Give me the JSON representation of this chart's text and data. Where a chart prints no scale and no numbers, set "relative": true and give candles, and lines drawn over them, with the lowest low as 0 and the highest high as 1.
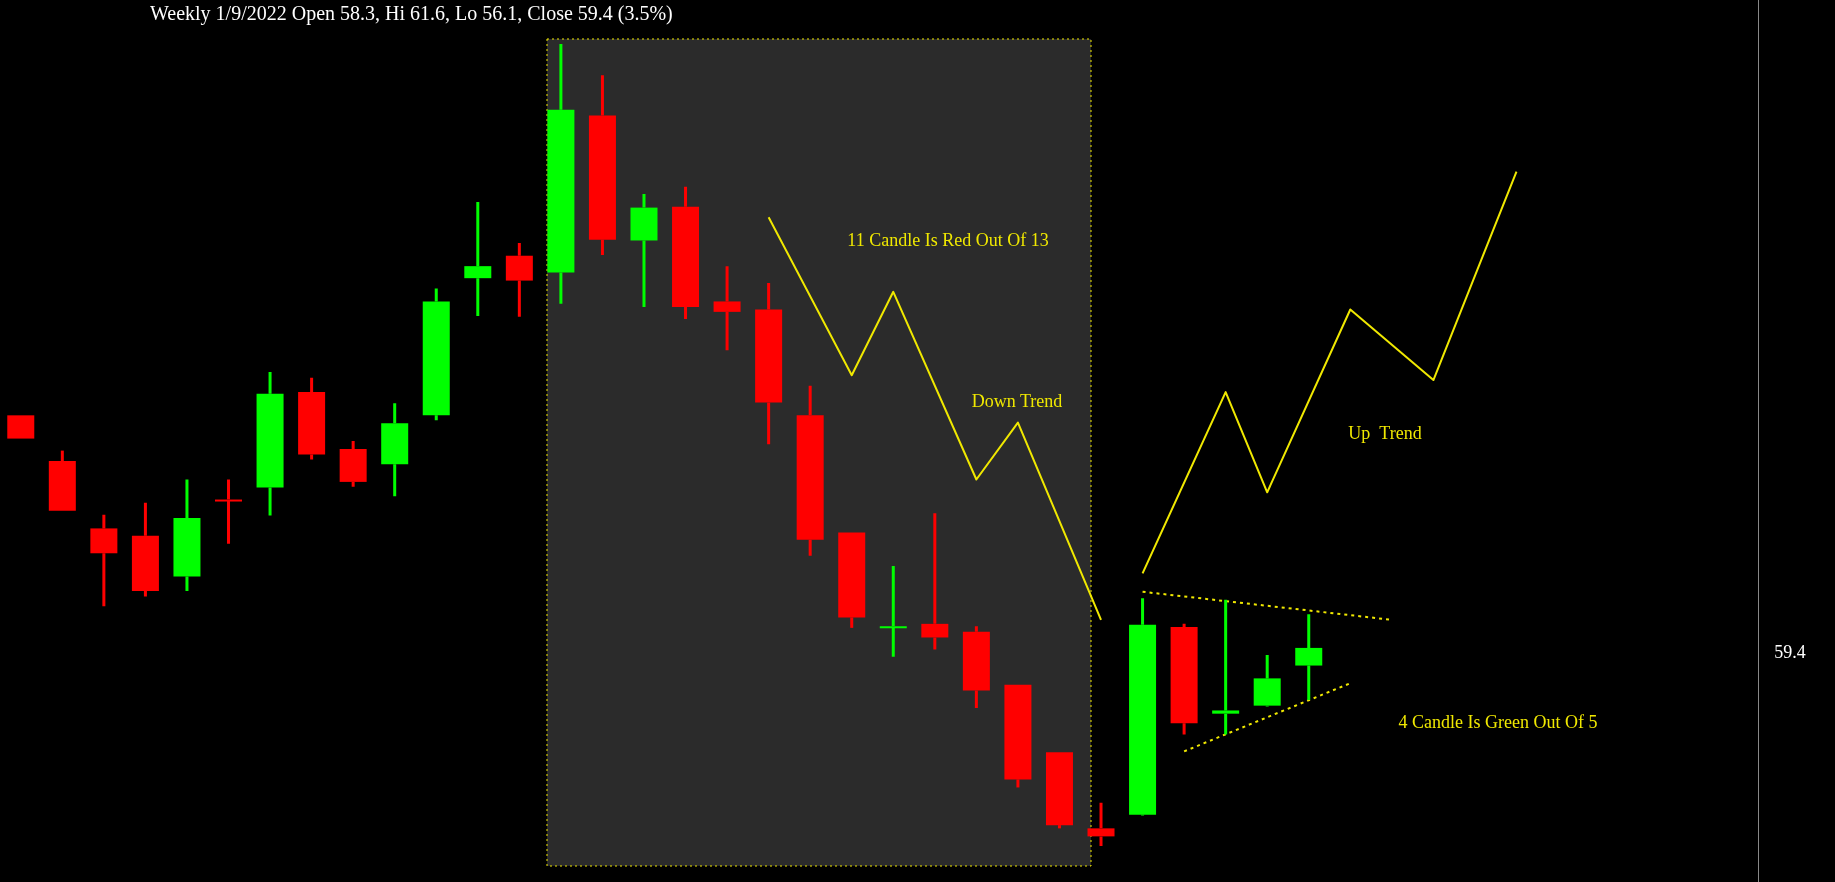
{
  "chart_data": {
    "type": "candlestick",
    "title": "Weekly 1/9/2022 Open 58.3, Hi 61.6, Lo 56.1, Close 59.4 (3.5%)",
    "relative": true,
    "categories": [
      null,
      null,
      null,
      null,
      null,
      null,
      null,
      null,
      null,
      null,
      null,
      null,
      null,
      null,
      null,
      null,
      null,
      null,
      null,
      null,
      null,
      null,
      null,
      null,
      null,
      null,
      null,
      null,
      null,
      null,
      null,
      null,
      null,
      null,
      null,
      null,
      null,
      null,
      null,
      null,
      null,
      null
    ],
    "ohlc": [
      [
        0.537,
        0.537,
        0.508,
        0.508
      ],
      [
        0.48,
        0.493,
        0.418,
        0.418
      ],
      [
        0.396,
        0.413,
        0.299,
        0.365
      ],
      [
        0.387,
        0.428,
        0.311,
        0.318
      ],
      [
        0.336,
        0.457,
        0.318,
        0.409
      ],
      [
        0.432,
        0.457,
        0.377,
        0.431
      ],
      [
        0.447,
        0.591,
        0.412,
        0.564
      ],
      [
        0.566,
        0.584,
        0.482,
        0.488
      ],
      [
        0.495,
        0.505,
        0.448,
        0.454
      ],
      [
        0.476,
        0.552,
        0.436,
        0.527
      ],
      [
        0.537,
        0.695,
        0.531,
        0.679
      ],
      [
        0.708,
        0.803,
        0.661,
        0.723
      ],
      [
        0.736,
        0.752,
        0.66,
        0.705
      ],
      [
        0.715,
        1,
        0.676,
        0.918
      ],
      [
        0.911,
        0.961,
        0.737,
        0.756
      ],
      [
        0.755,
        0.813,
        0.672,
        0.796
      ],
      [
        0.797,
        0.822,
        0.657,
        0.672
      ],
      [
        0.679,
        0.723,
        0.618,
        0.666
      ],
      [
        0.669,
        0.702,
        0.501,
        0.553
      ],
      [
        0.537,
        0.574,
        0.362,
        0.382
      ],
      [
        0.391,
        0.391,
        0.272,
        0.285
      ],
      [
        0.272,
        0.349,
        0.236,
        0.274
      ],
      [
        0.277,
        0.415,
        0.245,
        0.26
      ],
      [
        0.267,
        0.274,
        0.172,
        0.194
      ],
      [
        0.201,
        0.201,
        0.073,
        0.083
      ],
      [
        0.117,
        0.117,
        0.022,
        0.026
      ],
      [
        0.022,
        0.054,
        0,
        0.012
      ],
      [
        0.039,
        0.309,
        0.038,
        0.276
      ],
      [
        0.273,
        0.277,
        0.139,
        0.153
      ],
      [
        0.165,
        0.307,
        0.139,
        0.169
      ],
      [
        0.175,
        0.238,
        0.174,
        0.209
      ],
      [
        0.225,
        0.289,
        0.182,
        0.247
      ],
      null,
      null,
      null,
      null,
      null,
      null,
      null,
      null,
      null,
      null
    ],
    "colors": [
      "#ff0000",
      "#ff0000",
      "#ff0000",
      "#ff0000",
      "#00ff00",
      "#ff0000",
      "#00ff00",
      "#ff0000",
      "#ff0000",
      "#00ff00",
      "#00ff00",
      "#00ff00",
      "#ff0000",
      "#00ff00",
      "#ff0000",
      "#00ff00",
      "#ff0000",
      "#ff0000",
      "#ff0000",
      "#ff0000",
      "#ff0000",
      "#00ff00",
      "#ff0000",
      "#ff0000",
      "#ff0000",
      "#ff0000",
      "#ff0000",
      "#00ff00",
      "#ff0000",
      "#00ff00",
      "#00ff00",
      "#00ff00",
      null,
      null,
      null,
      null,
      null,
      null,
      null,
      null,
      null,
      null
    ],
    "series": [
      {
        "type": "line",
        "color": "#f0e800",
        "line_style": "solid",
        "values": [
          null,
          null,
          null,
          null,
          null,
          null,
          null,
          null,
          null,
          null,
          null,
          null,
          null,
          null,
          null,
          null,
          null,
          null,
          0.784,
          null,
          0.587,
          0.691,
          null,
          0.457,
          0.528,
          null,
          0.282,
          null,
          null,
          null,
          null,
          null,
          null,
          null,
          null,
          null,
          null,
          null,
          null,
          null,
          null,
          null
        ]
      },
      {
        "type": "line",
        "color": "#f0e800",
        "line_style": "solid",
        "values": [
          null,
          null,
          null,
          null,
          null,
          null,
          null,
          null,
          null,
          null,
          null,
          null,
          null,
          null,
          null,
          null,
          null,
          null,
          null,
          null,
          null,
          null,
          null,
          null,
          null,
          null,
          null,
          0.34,
          null,
          0.566,
          0.441,
          null,
          0.669,
          null,
          0.581,
          null,
          0.841,
          null,
          null,
          null,
          null,
          null
        ]
      },
      {
        "type": "line",
        "color": "#f0e800",
        "line_style": "dotted",
        "values": [
          null,
          null,
          null,
          null,
          null,
          null,
          null,
          null,
          null,
          null,
          null,
          null,
          null,
          null,
          null,
          null,
          null,
          null,
          null,
          null,
          null,
          null,
          null,
          null,
          null,
          null,
          null,
          0.317,
          null,
          null,
          null,
          null,
          null,
          0.282,
          null,
          null,
          null,
          null,
          null,
          null,
          null,
          null
        ]
      },
      {
        "type": "line",
        "color": "#f0e800",
        "line_style": "dotted",
        "values": [
          null,
          null,
          null,
          null,
          null,
          null,
          null,
          null,
          null,
          null,
          null,
          null,
          null,
          null,
          null,
          null,
          null,
          null,
          null,
          null,
          null,
          null,
          null,
          null,
          null,
          null,
          null,
          null,
          0.118,
          null,
          null,
          null,
          0.203,
          null,
          null,
          null,
          null,
          null,
          null,
          null,
          null,
          null
        ]
      }
    ],
    "annotations": [
      "11 Candle Is Red Out Of 13",
      "Down Trend",
      "Up  Trend",
      "4 Candle Is Green Out Of 5",
      "59.4"
    ]
  }
}
